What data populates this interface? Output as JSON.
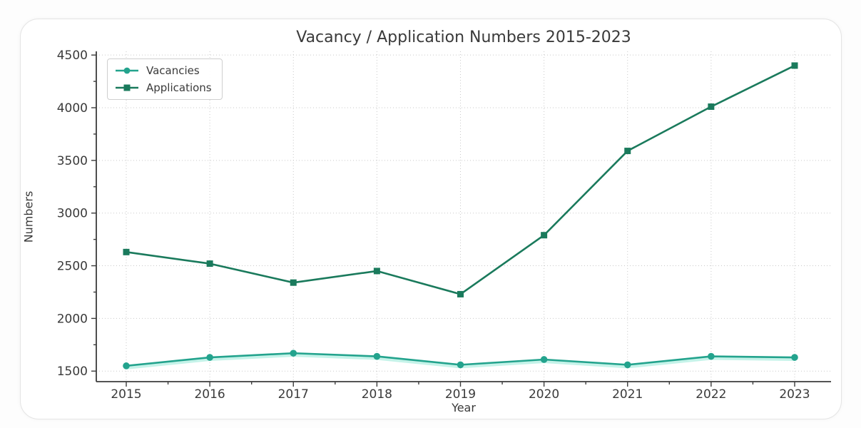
{
  "chart_data": {
    "type": "line",
    "title": "Vacancy / Application Numbers 2015-2023",
    "xlabel": "Year",
    "ylabel": "Numbers",
    "categories": [
      "2015",
      "2016",
      "2017",
      "2018",
      "2019",
      "2020",
      "2021",
      "2022",
      "2023"
    ],
    "series": [
      {
        "name": "Vacancies",
        "marker": "circle",
        "color": "#23a38d",
        "glow_color": "#b2efe2",
        "values": [
          1550,
          1630,
          1670,
          1640,
          1560,
          1610,
          1560,
          1640,
          1630
        ]
      },
      {
        "name": "Applications",
        "marker": "square",
        "color": "#1a7a5c",
        "values": [
          2630,
          2520,
          2340,
          2450,
          2230,
          2790,
          3590,
          4010,
          4400
        ]
      }
    ],
    "y_ticks": [
      1500,
      2000,
      2500,
      3000,
      3500,
      4000,
      4500
    ],
    "ylim": [
      1400,
      4535
    ],
    "grid": "dotted",
    "legend_position": "upper left",
    "text_color": "#3a3a3a",
    "grid_color": "#c9c9c9",
    "spine_color": "#3b3b3b"
  }
}
